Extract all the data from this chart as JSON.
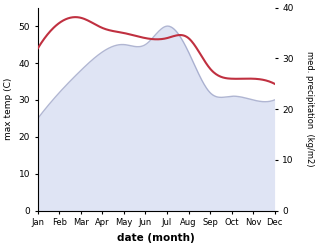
{
  "months": [
    "Jan",
    "Feb",
    "Mar",
    "Apr",
    "May",
    "Jun",
    "Jul",
    "Aug",
    "Sep",
    "Oct",
    "Nov",
    "Dec"
  ],
  "temp": [
    25,
    32,
    38,
    43,
    45,
    45,
    50,
    43,
    32,
    31,
    30,
    30
  ],
  "precip": [
    32,
    37,
    38,
    36,
    35,
    34,
    34,
    34,
    28,
    26,
    26,
    25
  ],
  "temp_fill_color": "#b8c4e8",
  "temp_line_color": "#9098c0",
  "precip_color": "#c03040",
  "left_ylabel": "max temp (C)",
  "right_ylabel": "med. precipitation  (kg/m2)",
  "xlabel": "date (month)",
  "ylim_left": [
    0,
    55
  ],
  "ylim_right": [
    0,
    40
  ],
  "yticks_left": [
    0,
    10,
    20,
    30,
    40,
    50
  ],
  "yticks_right": [
    0,
    10,
    20,
    30,
    40
  ],
  "background_color": "#ffffff"
}
